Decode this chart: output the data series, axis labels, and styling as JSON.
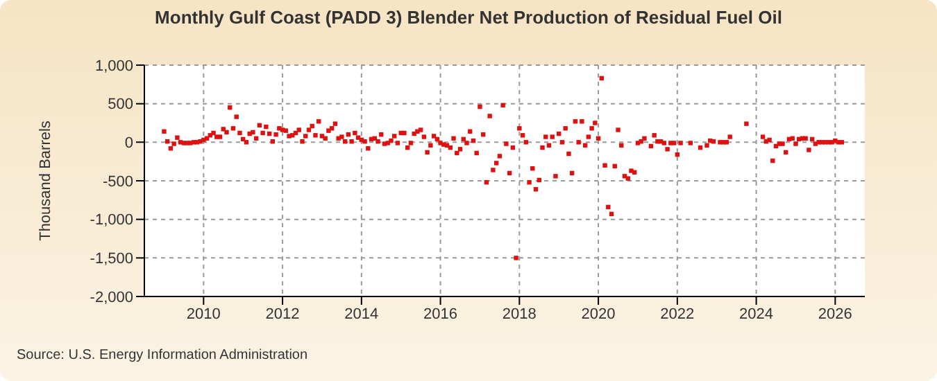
{
  "chart_data": {
    "type": "scatter",
    "title": "Monthly Gulf Coast (PADD 3) Blender Net Production of Residual Fuel Oil",
    "ylabel": "Thousand Barrels",
    "annotations": [
      "Source: U.S. Energy Information Administration"
    ],
    "xlim": [
      "2008-07",
      "2026-10"
    ],
    "xticks": [
      "2010",
      "2012",
      "2014",
      "2016",
      "2018",
      "2020",
      "2022",
      "2024",
      "2026"
    ],
    "ylim": [
      -2000,
      1000
    ],
    "yticks": [
      {
        "value": -2000,
        "label": "-2,000"
      },
      {
        "value": -1500,
        "label": "-1,500"
      },
      {
        "value": -1000,
        "label": "-1,000"
      },
      -500,
      0,
      500,
      {
        "value": 1000,
        "label": "1,000"
      }
    ],
    "grid": true,
    "marker": "square",
    "series": [
      {
        "color": "#dd1111",
        "x": [
          "2009-01",
          "2009-02",
          "2009-03",
          "2009-04",
          "2009-05",
          "2009-06",
          "2009-07",
          "2009-08",
          "2009-09",
          "2009-10",
          "2009-11",
          "2009-12",
          "2010-01",
          "2010-02",
          "2010-03",
          "2010-04",
          "2010-05",
          "2010-06",
          "2010-07",
          "2010-08",
          "2010-09",
          "2010-10",
          "2010-11",
          "2010-12",
          "2011-01",
          "2011-02",
          "2011-03",
          "2011-04",
          "2011-05",
          "2011-06",
          "2011-07",
          "2011-08",
          "2011-09",
          "2011-10",
          "2011-11",
          "2011-12",
          "2012-01",
          "2012-02",
          "2012-03",
          "2012-04",
          "2012-05",
          "2012-06",
          "2012-07",
          "2012-08",
          "2012-09",
          "2012-10",
          "2012-11",
          "2012-12",
          "2013-01",
          "2013-02",
          "2013-03",
          "2013-04",
          "2013-05",
          "2013-06",
          "2013-07",
          "2013-08",
          "2013-09",
          "2013-10",
          "2013-11",
          "2013-12",
          "2014-01",
          "2014-02",
          "2014-03",
          "2014-04",
          "2014-05",
          "2014-06",
          "2014-07",
          "2014-08",
          "2014-09",
          "2014-10",
          "2014-11",
          "2014-12",
          "2015-01",
          "2015-02",
          "2015-03",
          "2015-04",
          "2015-05",
          "2015-06",
          "2015-07",
          "2015-08",
          "2015-09",
          "2015-10",
          "2015-11",
          "2015-12",
          "2016-01",
          "2016-02",
          "2016-03",
          "2016-04",
          "2016-05",
          "2016-06",
          "2016-07",
          "2016-08",
          "2016-09",
          "2016-10",
          "2016-11",
          "2016-12",
          "2017-01",
          "2017-02",
          "2017-03",
          "2017-04",
          "2017-05",
          "2017-06",
          "2017-07",
          "2017-08",
          "2017-09",
          "2017-10",
          "2017-11",
          "2017-12",
          "2018-01",
          "2018-02",
          "2018-03",
          "2018-04",
          "2018-05",
          "2018-06",
          "2018-07",
          "2018-08",
          "2018-09",
          "2018-10",
          "2018-11",
          "2018-12",
          "2019-01",
          "2019-02",
          "2019-03",
          "2019-04",
          "2019-05",
          "2019-06",
          "2019-07",
          "2019-08",
          "2019-09",
          "2019-10",
          "2019-11",
          "2019-12",
          "2020-01",
          "2020-02",
          "2020-03",
          "2020-04",
          "2020-05",
          "2020-06",
          "2020-07",
          "2020-08",
          "2020-09",
          "2020-10",
          "2020-11",
          "2020-12",
          "2021-01",
          "2021-02",
          "2021-03",
          "2021-05",
          "2021-06",
          "2021-07",
          "2021-08",
          "2021-09",
          "2021-10",
          "2021-11",
          "2021-12",
          "2022-01",
          "2022-02",
          "2022-05",
          "2022-08",
          "2022-10",
          "2022-11",
          "2022-12",
          "2023-02",
          "2023-03",
          "2023-04",
          "2023-05",
          "2023-10",
          "2024-03",
          "2024-04",
          "2024-05",
          "2024-06",
          "2024-07",
          "2024-08",
          "2024-09",
          "2024-10",
          "2024-11",
          "2024-12",
          "2025-01",
          "2025-02",
          "2025-03",
          "2025-04",
          "2025-05",
          "2025-06",
          "2025-07",
          "2025-08",
          "2025-09",
          "2025-10",
          "2025-11",
          "2025-12",
          "2026-01",
          "2026-02",
          "2026-03"
        ],
        "values": [
          140,
          10,
          -80,
          -20,
          60,
          0,
          -10,
          -10,
          -10,
          0,
          0,
          10,
          30,
          50,
          90,
          120,
          70,
          70,
          170,
          130,
          450,
          180,
          330,
          120,
          40,
          0,
          110,
          130,
          50,
          220,
          120,
          200,
          110,
          10,
          100,
          180,
          160,
          150,
          80,
          90,
          120,
          160,
          10,
          80,
          160,
          210,
          90,
          270,
          80,
          50,
          150,
          180,
          240,
          50,
          70,
          10,
          100,
          10,
          120,
          60,
          30,
          10,
          -80,
          40,
          50,
          10,
          100,
          -20,
          -10,
          20,
          80,
          -10,
          120,
          120,
          -70,
          -10,
          110,
          140,
          160,
          70,
          -130,
          -40,
          80,
          40,
          -10,
          -30,
          -40,
          -70,
          50,
          -140,
          -90,
          40,
          -10,
          140,
          20,
          -140,
          460,
          100,
          -520,
          340,
          -360,
          -270,
          -180,
          480,
          -20,
          -400,
          -70,
          -1500,
          180,
          90,
          0,
          -520,
          -340,
          -610,
          -490,
          -70,
          70,
          -40,
          70,
          -440,
          110,
          0,
          180,
          -150,
          -400,
          270,
          0,
          270,
          -40,
          70,
          180,
          250,
          50,
          830,
          -300,
          -840,
          -930,
          -310,
          160,
          -40,
          -440,
          -470,
          -370,
          -390,
          -10,
          10,
          50,
          -50,
          90,
          10,
          10,
          -10,
          -90,
          -10,
          -10,
          -160,
          -10,
          -10,
          -70,
          -40,
          20,
          10,
          0,
          0,
          0,
          70,
          240,
          70,
          10,
          30,
          -240,
          -50,
          -20,
          -20,
          -130,
          40,
          50,
          -20,
          40,
          50,
          50,
          -100,
          40,
          -20,
          0,
          0,
          0,
          0,
          0,
          20,
          0,
          0
        ]
      }
    ]
  }
}
